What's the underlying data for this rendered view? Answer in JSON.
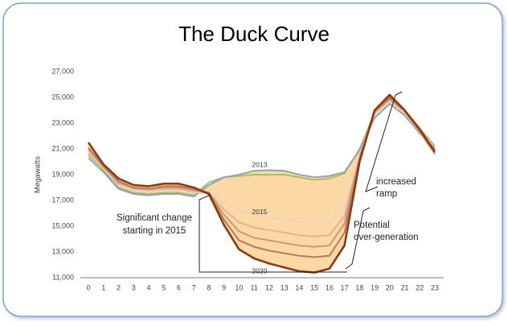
{
  "chart_data": {
    "type": "line",
    "title": "The Duck Curve",
    "y_label": "Megawatts",
    "x": [
      0,
      1,
      2,
      3,
      4,
      5,
      6,
      7,
      8,
      9,
      10,
      11,
      12,
      13,
      14,
      15,
      16,
      17,
      18,
      19,
      20,
      21,
      22,
      23
    ],
    "xlim": [
      0,
      23
    ],
    "xticks": [
      0,
      1,
      2,
      3,
      4,
      5,
      6,
      7,
      8,
      9,
      10,
      11,
      12,
      13,
      14,
      15,
      16,
      17,
      18,
      19,
      20,
      21,
      22,
      23
    ],
    "ylim": [
      11000,
      27000
    ],
    "yticks": [
      {
        "value": 11000,
        "label": "11,000"
      },
      {
        "value": 13000,
        "label": "13,000"
      },
      {
        "value": 15000,
        "label": "15,000"
      },
      {
        "value": 17000,
        "label": "17,000"
      },
      {
        "value": 19000,
        "label": "19,000"
      },
      {
        "value": 21000,
        "label": "21,000"
      },
      {
        "value": 23000,
        "label": "23,000"
      },
      {
        "value": 25000,
        "label": "25,000"
      },
      {
        "value": 27000,
        "label": "27,000"
      }
    ],
    "fill_color": "#fcd9a4",
    "series": [
      {
        "color": "#a9bd6e",
        "values": [
          20600,
          19400,
          18000,
          17600,
          17500,
          17600,
          17600,
          17400,
          18400,
          18800,
          18900,
          19000,
          19000,
          19000,
          18800,
          18600,
          18700,
          19100,
          21000,
          23800,
          24800,
          24000,
          22600,
          21200
        ]
      },
      {
        "name": "2013",
        "color": "#8fa3b5",
        "values": [
          20300,
          19200,
          17900,
          17500,
          17400,
          17500,
          17500,
          17300,
          18200,
          18800,
          19000,
          19300,
          19350,
          19300,
          19000,
          18800,
          18900,
          19200,
          20900,
          23400,
          24500,
          23600,
          22200,
          21000
        ]
      },
      {
        "name": "2015",
        "color": "#f0d2c0",
        "values": [
          20800,
          19500,
          18200,
          17800,
          17700,
          17800,
          17800,
          17600,
          17600,
          16800,
          16200,
          15900,
          15700,
          15500,
          15300,
          15200,
          15300,
          16500,
          20500,
          23800,
          24700,
          23800,
          22300,
          20600
        ]
      },
      {
        "color": "#dfb29a",
        "values": [
          20900,
          19600,
          18300,
          17900,
          17800,
          17900,
          17900,
          17700,
          17600,
          16300,
          15300,
          14900,
          14700,
          14500,
          14300,
          14200,
          14300,
          15800,
          20400,
          23800,
          24800,
          23900,
          22300,
          20600
        ]
      },
      {
        "color": "#cd977c",
        "values": [
          21000,
          19600,
          18400,
          18000,
          17900,
          18000,
          18000,
          17800,
          17600,
          15900,
          14600,
          14100,
          13900,
          13700,
          13500,
          13400,
          13500,
          15200,
          20300,
          23900,
          24900,
          23900,
          22400,
          20600
        ]
      },
      {
        "color": "#b97a5c",
        "values": [
          21100,
          19700,
          18500,
          18000,
          17900,
          18100,
          18100,
          17900,
          17600,
          15500,
          13900,
          13400,
          13100,
          12900,
          12700,
          12600,
          12700,
          14500,
          20200,
          23900,
          25000,
          24000,
          22400,
          20700
        ]
      },
      {
        "name": "2020",
        "color": "#8a3b10",
        "values": [
          21500,
          19800,
          18700,
          18200,
          18100,
          18300,
          18300,
          18000,
          17500,
          15100,
          13200,
          12500,
          12100,
          11800,
          11500,
          11400,
          11700,
          13500,
          20000,
          24000,
          25200,
          24000,
          22500,
          20800
        ]
      }
    ],
    "annotations": {
      "change": [
        "Significant change",
        "starting in 2015"
      ],
      "ramp": [
        "increased",
        "ramp"
      ],
      "overgen": [
        "Potential",
        "over-generation"
      ]
    }
  }
}
